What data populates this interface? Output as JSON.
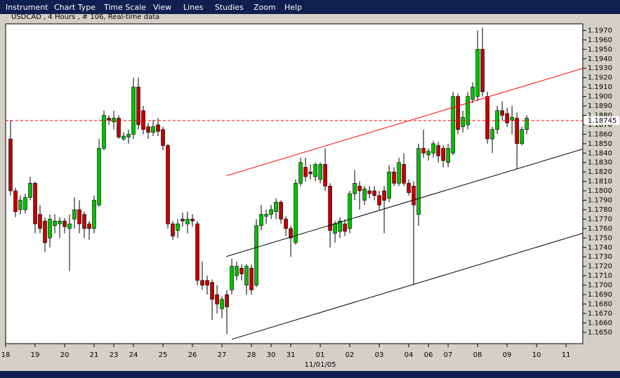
{
  "menu": [
    "Instrument",
    "Chart Type",
    "Time Scale",
    "View",
    "Lines",
    "Studies",
    "Zoom",
    "Help"
  ],
  "chart_data": {
    "type": "candlestick",
    "title": "USDCAD , 4 Hours , # 106, Real-time data",
    "x_label": "11/01/05",
    "up_color": "#00c000",
    "down_color": "#c00000",
    "x": [
      1,
      2,
      3,
      4,
      5,
      6,
      7,
      8,
      9,
      10,
      11,
      12,
      13,
      14,
      15,
      16,
      17,
      18,
      19,
      20,
      21,
      22,
      23,
      24,
      25,
      26,
      27,
      28,
      29,
      30,
      31,
      32,
      33,
      34,
      35,
      36,
      37,
      38,
      39,
      40,
      41,
      42,
      43,
      44,
      45,
      46,
      47,
      48,
      49,
      50,
      51,
      52,
      53,
      54,
      55,
      56,
      57,
      58,
      59,
      60,
      61,
      62,
      63,
      64,
      65,
      66,
      67,
      68,
      69,
      70,
      71,
      72,
      73,
      74,
      75,
      76,
      77,
      78,
      79,
      80,
      81,
      82,
      83,
      84,
      85,
      86,
      87,
      88,
      89,
      90,
      91,
      92,
      93,
      94,
      95,
      96,
      97,
      98,
      99,
      100,
      101,
      102,
      103,
      104,
      105,
      106
    ],
    "open": [
      1.1855,
      1.18,
      1.178,
      1.178,
      1.1793,
      1.1808,
      1.1775,
      1.1768,
      1.175,
      1.1763,
      1.1765,
      1.1768,
      1.176,
      1.177,
      1.178,
      1.1775,
      1.1765,
      1.176,
      1.1785,
      1.1845,
      1.1877,
      1.1873,
      1.1877,
      1.1855,
      1.1857,
      1.186,
      1.191,
      1.1885,
      1.1868,
      1.1862,
      1.187,
      1.1865,
      1.1848,
      1.1765,
      1.1758,
      1.177,
      1.1765,
      1.177,
      1.1765,
      1.1705,
      1.1705,
      1.1703,
      1.169,
      1.1675,
      1.169,
      1.1695,
      1.171,
      1.1718,
      1.17,
      1.1718,
      1.17,
      1.1763,
      1.1773,
      1.1775,
      1.1778,
      1.1788,
      1.177,
      1.176,
      1.1745,
      1.1808,
      1.1825,
      1.182,
      1.1815,
      1.1812,
      1.1828,
      1.1805,
      1.1755,
      1.1757,
      1.1765,
      1.176,
      1.1797,
      1.1805,
      1.179,
      1.18,
      1.18,
      1.1795,
      1.18,
      1.1792,
      1.182,
      1.1808,
      1.1828,
      1.1808,
      1.1805,
      1.1775,
      1.1845,
      1.1838,
      1.184,
      1.1848,
      1.1845,
      1.183,
      1.184,
      1.19,
      1.1868,
      1.187,
      1.1897,
      1.19,
      1.195,
      1.19,
      1.1855,
      1.1865,
      1.1885,
      1.1882,
      1.1875,
      1.1877,
      1.185,
      1.1865
    ],
    "high": [
      1.1875,
      1.1803,
      1.1795,
      1.1797,
      1.1815,
      1.181,
      1.1785,
      1.1772,
      1.1775,
      1.1775,
      1.1772,
      1.1771,
      1.1775,
      1.1793,
      1.179,
      1.1778,
      1.1768,
      1.1795,
      1.1855,
      1.1885,
      1.188,
      1.1885,
      1.188,
      1.1862,
      1.1865,
      1.192,
      1.192,
      1.189,
      1.1872,
      1.1875,
      1.1877,
      1.1868,
      1.185,
      1.1768,
      1.177,
      1.1777,
      1.1778,
      1.1775,
      1.1768,
      1.1725,
      1.171,
      1.1706,
      1.17,
      1.1688,
      1.1695,
      1.1728,
      1.1725,
      1.1722,
      1.1722,
      1.1722,
      1.177,
      1.1785,
      1.178,
      1.1785,
      1.1792,
      1.179,
      1.1773,
      1.1763,
      1.1812,
      1.1835,
      1.1835,
      1.1828,
      1.183,
      1.183,
      1.1845,
      1.1808,
      1.1768,
      1.1772,
      1.177,
      1.18,
      1.1822,
      1.181,
      1.1805,
      1.1805,
      1.1805,
      1.18,
      1.1805,
      1.1827,
      1.1825,
      1.1835,
      1.184,
      1.1812,
      1.181,
      1.185,
      1.1865,
      1.1845,
      1.1853,
      1.1852,
      1.1848,
      1.185,
      1.1905,
      1.1903,
      1.1885,
      1.1905,
      1.1915,
      1.197,
      1.1973,
      1.1905,
      1.1868,
      1.189,
      1.1895,
      1.1888,
      1.189,
      1.1883,
      1.1868,
      1.188
    ],
    "low": [
      1.1795,
      1.1772,
      1.1775,
      1.1776,
      1.179,
      1.1755,
      1.1755,
      1.1735,
      1.174,
      1.1755,
      1.175,
      1.1755,
      1.1715,
      1.176,
      1.1755,
      1.175,
      1.1748,
      1.1755,
      1.1783,
      1.1843,
      1.187,
      1.1865,
      1.1855,
      1.1853,
      1.185,
      1.1855,
      1.1865,
      1.186,
      1.1855,
      1.1858,
      1.1858,
      1.1843,
      1.176,
      1.1748,
      1.175,
      1.1762,
      1.1755,
      1.1762,
      1.17,
      1.1695,
      1.169,
      1.1663,
      1.167,
      1.1665,
      1.1648,
      1.169,
      1.1705,
      1.1705,
      1.169,
      1.169,
      1.1698,
      1.1758,
      1.1765,
      1.177,
      1.177,
      1.1765,
      1.1752,
      1.173,
      1.1743,
      1.1805,
      1.181,
      1.1812,
      1.181,
      1.1808,
      1.18,
      1.174,
      1.1745,
      1.175,
      1.1752,
      1.1755,
      1.179,
      1.178,
      1.1785,
      1.1792,
      1.179,
      1.178,
      1.1755,
      1.1788,
      1.1805,
      1.1805,
      1.1805,
      1.1795,
      1.17,
      1.1763,
      1.1835,
      1.1832,
      1.1835,
      1.183,
      1.1825,
      1.1825,
      1.1838,
      1.186,
      1.1862,
      1.1865,
      1.1893,
      1.1895,
      1.19,
      1.185,
      1.184,
      1.186,
      1.1875,
      1.1868,
      1.186,
      1.1823,
      1.1848,
      1.186
    ],
    "close": [
      1.18,
      1.1778,
      1.179,
      1.1793,
      1.1808,
      1.1765,
      1.176,
      1.1745,
      1.177,
      1.1768,
      1.1768,
      1.1762,
      1.1765,
      1.178,
      1.1765,
      1.176,
      1.176,
      1.179,
      1.1845,
      1.188,
      1.1875,
      1.1877,
      1.1857,
      1.1858,
      1.186,
      1.191,
      1.187,
      1.1865,
      1.1862,
      1.1868,
      1.1863,
      1.1848,
      1.1765,
      1.1752,
      1.1765,
      1.1768,
      1.177,
      1.1768,
      1.1705,
      1.17,
      1.17,
      1.1685,
      1.168,
      1.1685,
      1.1677,
      1.172,
      1.172,
      1.1712,
      1.172,
      1.1695,
      1.1763,
      1.1775,
      1.1775,
      1.178,
      1.1788,
      1.177,
      1.176,
      1.175,
      1.1808,
      1.183,
      1.1815,
      1.1818,
      1.1828,
      1.1828,
      1.1805,
      1.1758,
      1.1765,
      1.1768,
      1.1757,
      1.1797,
      1.1808,
      1.18,
      1.1802,
      1.1797,
      1.1795,
      1.1785,
      1.179,
      1.182,
      1.1808,
      1.183,
      1.1808,
      1.1798,
      1.1785,
      1.1845,
      1.184,
      1.1842,
      1.185,
      1.1837,
      1.1832,
      1.1845,
      1.19,
      1.1865,
      1.1878,
      1.19,
      1.191,
      1.195,
      1.1905,
      1.1855,
      1.1865,
      1.1885,
      1.188,
      1.1872,
      1.1878,
      1.185,
      1.1865,
      1.1877
    ],
    "xlim": [
      0,
      117.4
    ],
    "ylim": [
      1.1638,
      1.1977
    ],
    "xticks": [
      {
        "value": 0,
        "label": "18"
      },
      {
        "value": 6,
        "label": "19"
      },
      {
        "value": 12,
        "label": "20"
      },
      {
        "value": 18,
        "label": "21"
      },
      {
        "value": 22,
        "label": "23"
      },
      {
        "value": 26,
        "label": "24"
      },
      {
        "value": 32,
        "label": "25"
      },
      {
        "value": 38,
        "label": "26"
      },
      {
        "value": 44,
        "label": "27"
      },
      {
        "value": 50,
        "label": "28"
      },
      {
        "value": 54,
        "label": "30"
      },
      {
        "value": 58,
        "label": "31"
      },
      {
        "value": 64,
        "label": "01"
      },
      {
        "value": 70,
        "label": "02"
      },
      {
        "value": 76,
        "label": "03"
      },
      {
        "value": 82,
        "label": "04"
      },
      {
        "value": 86,
        "label": "06"
      },
      {
        "value": 90,
        "label": "07"
      },
      {
        "value": 96,
        "label": "08"
      },
      {
        "value": 102,
        "label": "09"
      },
      {
        "value": 108,
        "label": "10"
      },
      {
        "value": 114,
        "label": "11"
      }
    ],
    "yticks": [
      {
        "value": 1.197,
        "label": "1.1970"
      },
      {
        "value": 1.196,
        "label": "1.1960"
      },
      {
        "value": 1.195,
        "label": "1.1950"
      },
      {
        "value": 1.194,
        "label": "1.1940"
      },
      {
        "value": 1.193,
        "label": "1.1930"
      },
      {
        "value": 1.192,
        "label": "1.1920"
      },
      {
        "value": 1.191,
        "label": "1.1910"
      },
      {
        "value": 1.19,
        "label": "1.1900"
      },
      {
        "value": 1.189,
        "label": "1.1890"
      },
      {
        "value": 1.188,
        "label": "1.1880"
      },
      {
        "value": 1.187,
        "label": "1.1870"
      },
      {
        "value": 1.186,
        "label": "1.1860"
      },
      {
        "value": 1.185,
        "label": "1.1850"
      },
      {
        "value": 1.184,
        "label": "1.1840"
      },
      {
        "value": 1.183,
        "label": "1.1830"
      },
      {
        "value": 1.182,
        "label": "1.1820"
      },
      {
        "value": 1.181,
        "label": "1.1810"
      },
      {
        "value": 1.18,
        "label": "1.1800"
      },
      {
        "value": 1.179,
        "label": "1.1790"
      },
      {
        "value": 1.178,
        "label": "1.1780"
      },
      {
        "value": 1.177,
        "label": "1.1770"
      },
      {
        "value": 1.176,
        "label": "1.1760"
      },
      {
        "value": 1.175,
        "label": "1.1750"
      },
      {
        "value": 1.174,
        "label": "1.1740"
      },
      {
        "value": 1.173,
        "label": "1.1730"
      },
      {
        "value": 1.172,
        "label": "1.1720"
      },
      {
        "value": 1.171,
        "label": "1.1710"
      },
      {
        "value": 1.17,
        "label": "1.1700"
      },
      {
        "value": 1.169,
        "label": "1.1690"
      },
      {
        "value": 1.168,
        "label": "1.1680"
      },
      {
        "value": 1.167,
        "label": "1.1670"
      },
      {
        "value": 1.166,
        "label": "1.1660"
      },
      {
        "value": 1.165,
        "label": "1.1650"
      }
    ],
    "last_price": {
      "value": 1.18745,
      "label": "1.18745",
      "color": "#ff0000"
    },
    "trendlines": [
      {
        "color": "#ff0000",
        "x": [
          44.9,
          117.4
        ],
        "y": [
          1.1816,
          1.19298
        ]
      },
      {
        "color": "#000000",
        "x": [
          44.9,
          117.4
        ],
        "y": [
          1.17304,
          1.18443
        ]
      },
      {
        "color": "#000000",
        "x": [
          46,
          117.4
        ],
        "y": [
          1.16426,
          1.1755
        ]
      }
    ]
  }
}
